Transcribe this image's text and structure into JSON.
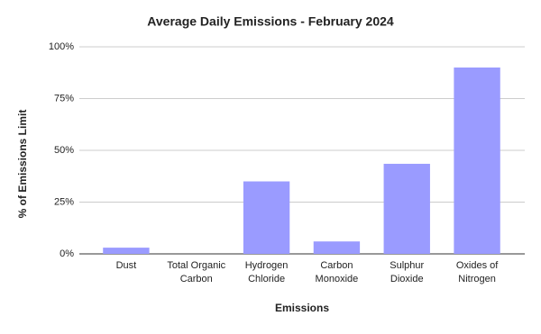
{
  "chart_data": {
    "type": "bar",
    "title": "Average Daily Emissions - February 2024",
    "x_label": "Emissions",
    "y_label": "% of Emissions Limit",
    "categories": [
      "Dust",
      "Total Organic Carbon",
      "Hydrogen Chloride",
      "Carbon Monoxide",
      "Sulphur Dioxide",
      "Oxides of Nitrogen"
    ],
    "values": [
      3,
      0,
      35,
      6,
      43.5,
      90
    ],
    "color": "#9a9bff",
    "ylim": [
      0,
      100
    ],
    "yticks": [
      {
        "value": 0,
        "label": "0%"
      },
      {
        "value": 25,
        "label": "25%"
      },
      {
        "value": 50,
        "label": "50%"
      },
      {
        "value": 75,
        "label": "75%"
      },
      {
        "value": 100,
        "label": "100%"
      }
    ],
    "grid": true
  }
}
